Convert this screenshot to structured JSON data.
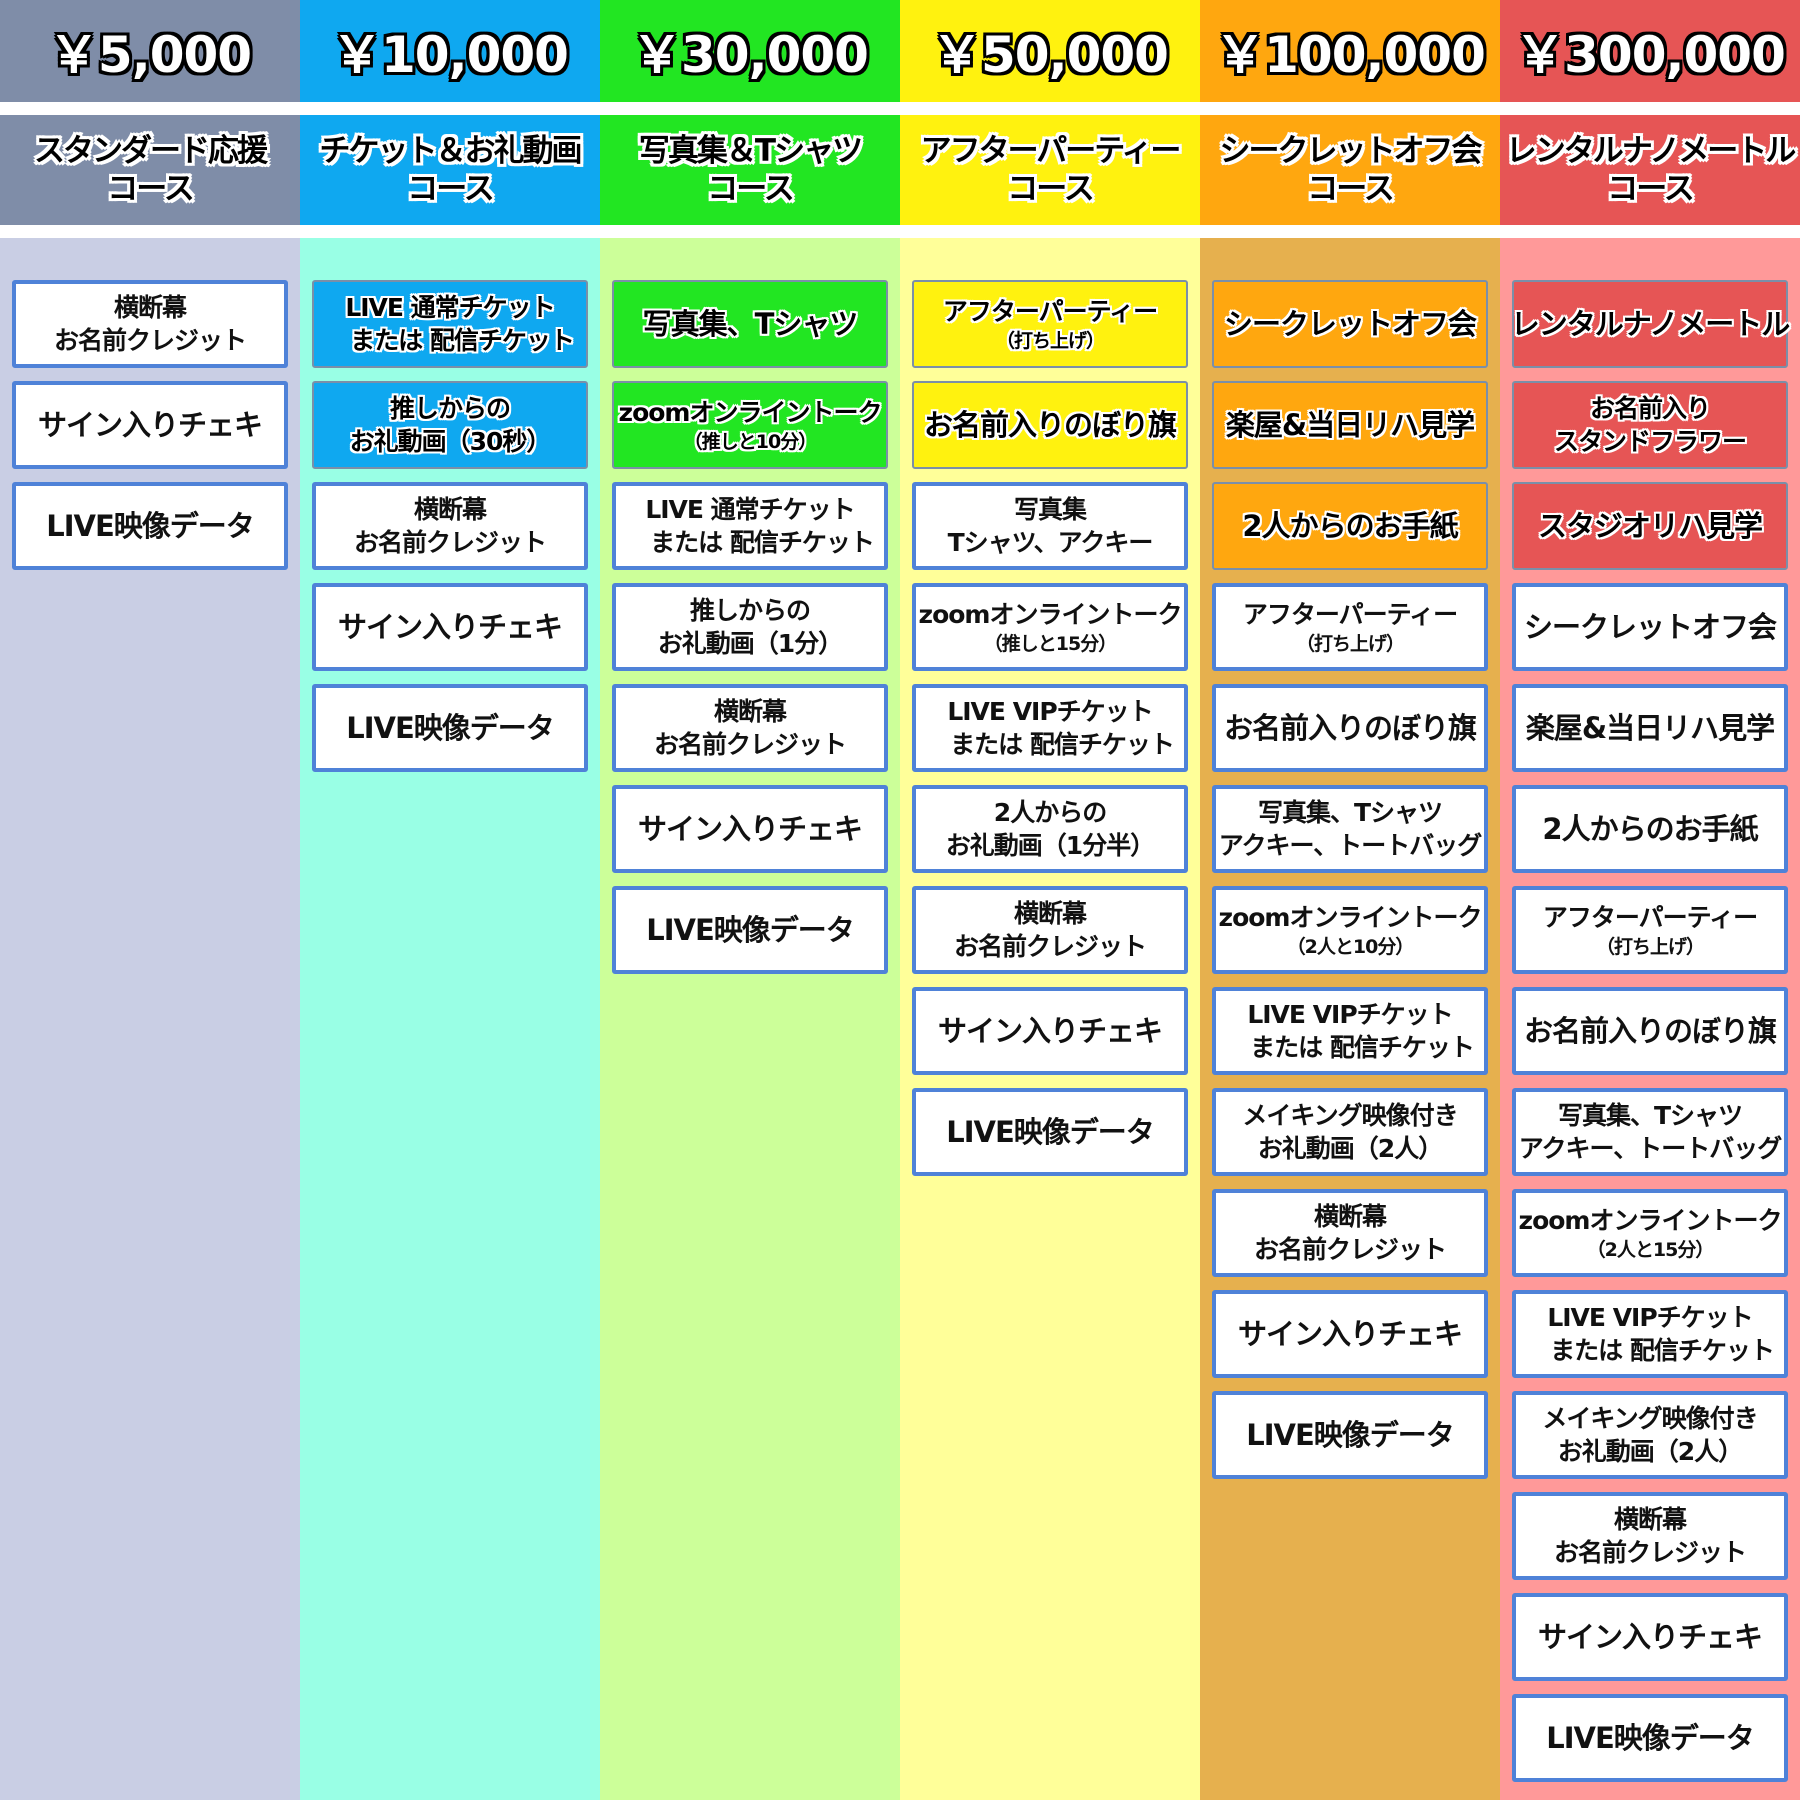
{
  "columns": [
    {
      "price": "￥5,000",
      "title": [
        "スタンダード応援",
        "コース"
      ],
      "header_color": "#7f8da8",
      "bg_color": "#c9cee4",
      "new_color": "#7f8da8",
      "items": [
        {
          "lines": [
            "横断幕",
            "お名前クレジット"
          ],
          "new": false
        },
        {
          "lines": [
            "サイン入りチェキ"
          ],
          "new": false
        },
        {
          "lines": [
            "LIVE映像データ"
          ],
          "new": false
        }
      ]
    },
    {
      "price": "￥10,000",
      "title": [
        "チケット＆お礼動画",
        "コース"
      ],
      "header_color": "#0fa8f0",
      "bg_color": "#99ffe5",
      "new_color": "#0fa8f0",
      "items": [
        {
          "lines": [
            "LIVE 通常チケット",
            "　または 配信チケット"
          ],
          "new": true
        },
        {
          "lines": [
            "推しからの",
            "お礼動画（30秒）"
          ],
          "new": true
        },
        {
          "lines": [
            "横断幕",
            "お名前クレジット"
          ],
          "new": false
        },
        {
          "lines": [
            "サイン入りチェキ"
          ],
          "new": false
        },
        {
          "lines": [
            "LIVE映像データ"
          ],
          "new": false
        }
      ]
    },
    {
      "price": "￥30,000",
      "title": [
        "写真集＆Tシャツ",
        "コース"
      ],
      "header_color": "#22e622",
      "bg_color": "#ccff99",
      "new_color": "#22e622",
      "items": [
        {
          "lines": [
            "写真集、Tシャツ"
          ],
          "new": true
        },
        {
          "lines": [
            "zoomオンライントーク",
            "（推しと10分）"
          ],
          "new": true
        },
        {
          "lines": [
            "LIVE 通常チケット",
            "　または 配信チケット"
          ],
          "new": false
        },
        {
          "lines": [
            "推しからの",
            "お礼動画（1分）"
          ],
          "new": false
        },
        {
          "lines": [
            "横断幕",
            "お名前クレジット"
          ],
          "new": false
        },
        {
          "lines": [
            "サイン入りチェキ"
          ],
          "new": false
        },
        {
          "lines": [
            "LIVE映像データ"
          ],
          "new": false
        }
      ]
    },
    {
      "price": "￥50,000",
      "title": [
        "アフターパーティー",
        "コース"
      ],
      "header_color": "#fff20f",
      "bg_color": "#ffff99",
      "new_color": "#fff20f",
      "items": [
        {
          "lines": [
            "アフターパーティー",
            "（打ち上げ）"
          ],
          "new": true
        },
        {
          "lines": [
            "お名前入りのぼり旗"
          ],
          "new": true
        },
        {
          "lines": [
            "写真集",
            "Tシャツ、アクキー"
          ],
          "new": false
        },
        {
          "lines": [
            "zoomオンライントーク",
            "（推しと15分）"
          ],
          "new": false
        },
        {
          "lines": [
            "LIVE VIPチケット",
            "　または 配信チケット"
          ],
          "new": false
        },
        {
          "lines": [
            "2人からの",
            "お礼動画（1分半）"
          ],
          "new": false
        },
        {
          "lines": [
            "横断幕",
            "お名前クレジット"
          ],
          "new": false
        },
        {
          "lines": [
            "サイン入りチェキ"
          ],
          "new": false
        },
        {
          "lines": [
            "LIVE映像データ"
          ],
          "new": false
        }
      ]
    },
    {
      "price": "￥100,000",
      "title": [
        "シークレットオフ会",
        "コース"
      ],
      "header_color": "#ffa70f",
      "bg_color": "#e6b04e",
      "new_color": "#ffa70f",
      "items": [
        {
          "lines": [
            "シークレットオフ会"
          ],
          "new": true
        },
        {
          "lines": [
            "楽屋&当日リハ見学"
          ],
          "new": true
        },
        {
          "lines": [
            "2人からのお手紙"
          ],
          "new": true
        },
        {
          "lines": [
            "アフターパーティー",
            "（打ち上げ）"
          ],
          "new": false
        },
        {
          "lines": [
            "お名前入りのぼり旗"
          ],
          "new": false
        },
        {
          "lines": [
            "写真集、Tシャツ",
            "アクキー、トートバッグ"
          ],
          "new": false
        },
        {
          "lines": [
            "zoomオンライントーク",
            "（2人と10分）"
          ],
          "new": false
        },
        {
          "lines": [
            "LIVE VIPチケット",
            "　または 配信チケット"
          ],
          "new": false
        },
        {
          "lines": [
            "メイキング映像付き",
            "お礼動画（2人）"
          ],
          "new": false
        },
        {
          "lines": [
            "横断幕",
            "お名前クレジット"
          ],
          "new": false
        },
        {
          "lines": [
            "サイン入りチェキ"
          ],
          "new": false
        },
        {
          "lines": [
            "LIVE映像データ"
          ],
          "new": false
        }
      ]
    },
    {
      "price": "￥300,000",
      "title": [
        "レンタルナノメートル",
        "コース"
      ],
      "header_color": "#e65555",
      "bg_color": "#ff9999",
      "new_color": "#e65555",
      "items": [
        {
          "lines": [
            "レンタルナノメートル"
          ],
          "new": true
        },
        {
          "lines": [
            "お名前入り",
            "スタンドフラワー"
          ],
          "new": true
        },
        {
          "lines": [
            "スタジオリハ見学"
          ],
          "new": true
        },
        {
          "lines": [
            "シークレットオフ会"
          ],
          "new": false
        },
        {
          "lines": [
            "楽屋&当日リハ見学"
          ],
          "new": false
        },
        {
          "lines": [
            "2人からのお手紙"
          ],
          "new": false
        },
        {
          "lines": [
            "アフターパーティー",
            "（打ち上げ）"
          ],
          "new": false
        },
        {
          "lines": [
            "お名前入りのぼり旗"
          ],
          "new": false
        },
        {
          "lines": [
            "写真集、Tシャツ",
            "アクキー、トートバッグ"
          ],
          "new": false
        },
        {
          "lines": [
            "zoomオンライントーク",
            "（2人と15分）"
          ],
          "new": false
        },
        {
          "lines": [
            "LIVE VIPチケット",
            "　または 配信チケット"
          ],
          "new": false
        },
        {
          "lines": [
            "メイキング映像付き",
            "お礼動画（2人）"
          ],
          "new": false
        },
        {
          "lines": [
            "横断幕",
            "お名前クレジット"
          ],
          "new": false
        },
        {
          "lines": [
            "サイン入りチェキ"
          ],
          "new": false
        },
        {
          "lines": [
            "LIVE映像データ"
          ],
          "new": false
        }
      ]
    }
  ]
}
